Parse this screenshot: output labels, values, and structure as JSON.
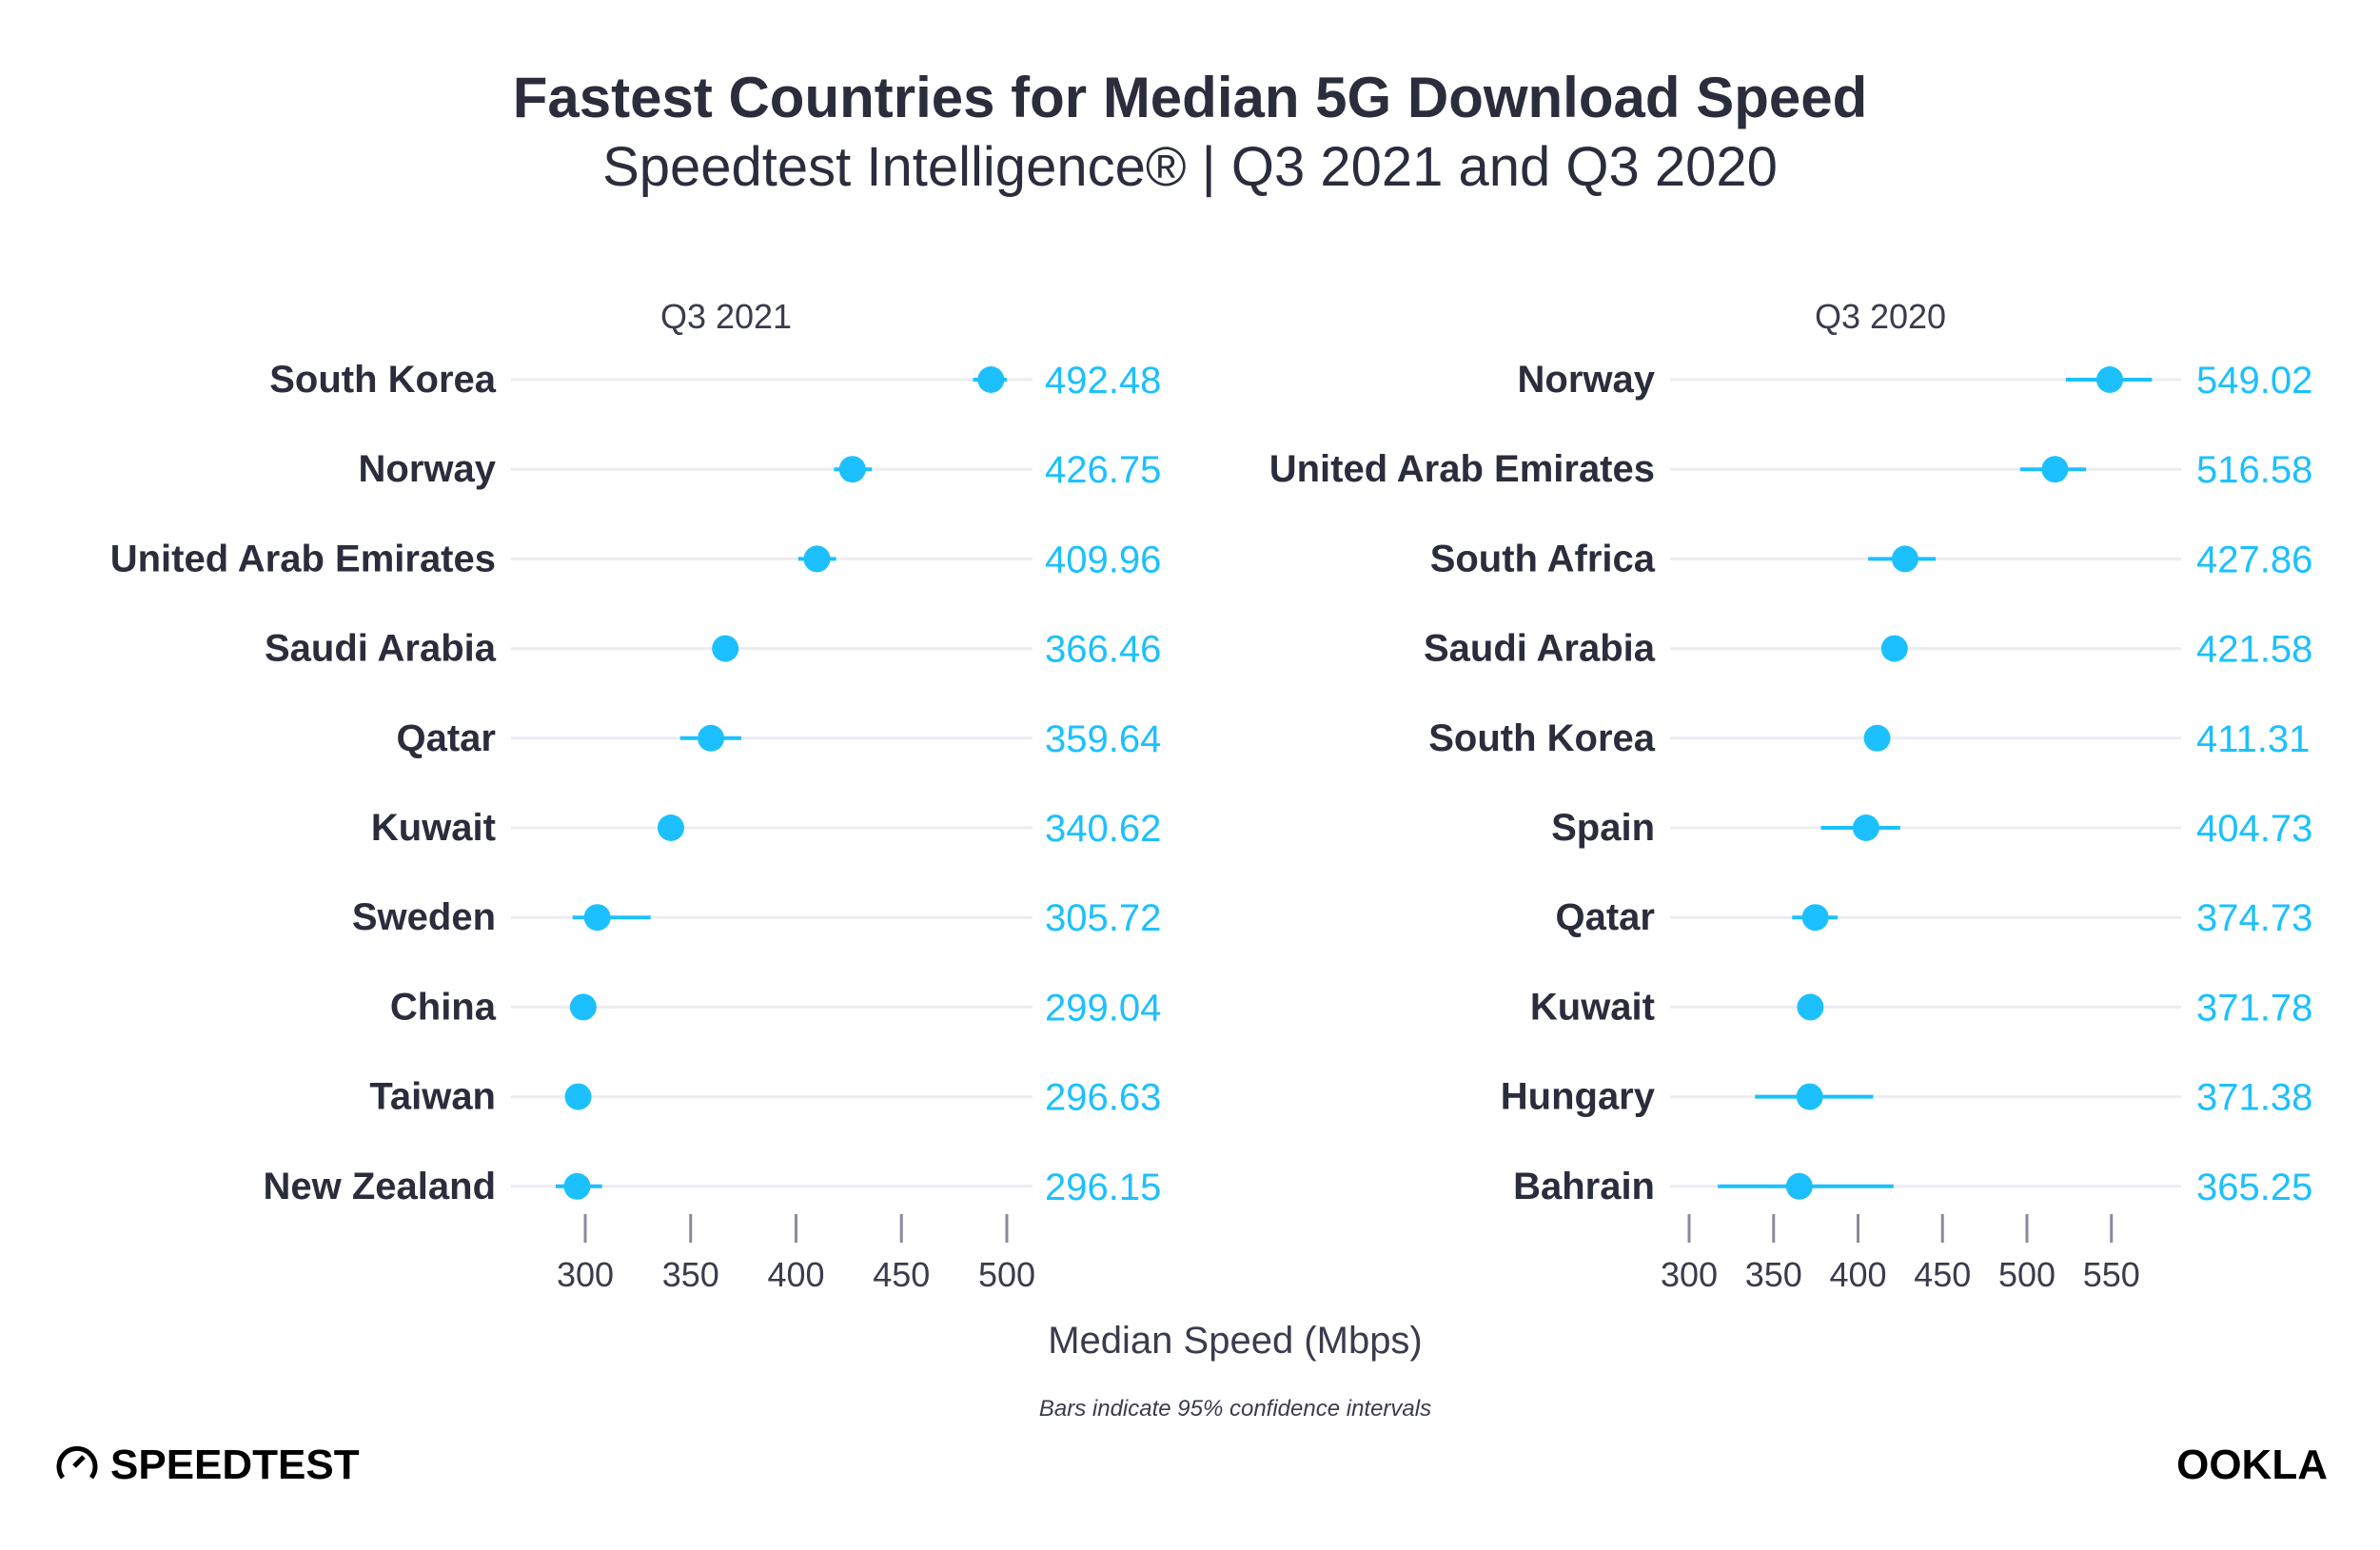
{
  "title": "Fastest Countries for Median 5G Download Speed",
  "subtitle": "Speedtest Intelligence® | Q3 2021 and Q3 2020",
  "chart_data": [
    {
      "type": "dot",
      "panel_title": "Q3 2021",
      "categories": [
        "South Korea",
        "Norway",
        "United Arab Emirates",
        "Saudi Arabia",
        "Qatar",
        "Kuwait",
        "Sweden",
        "China",
        "Taiwan",
        "New Zealand"
      ],
      "values": [
        492.48,
        426.75,
        409.96,
        366.46,
        359.64,
        340.62,
        305.72,
        299.04,
        296.63,
        296.15
      ],
      "value_labels": [
        "492.48",
        "426.75",
        "409.96",
        "366.46",
        "359.64",
        "340.62",
        "305.72",
        "299.04",
        "296.63",
        "296.15"
      ],
      "ci": [
        [
          484,
          500
        ],
        [
          418,
          436
        ],
        [
          401,
          419
        ],
        null,
        [
          345,
          374
        ],
        null,
        [
          294,
          331
        ],
        null,
        null,
        [
          286,
          308
        ]
      ],
      "xlim": [
        280,
        510
      ],
      "xticks": [
        "300",
        "350",
        "400",
        "450",
        "500"
      ]
    },
    {
      "type": "dot",
      "panel_title": "Q3 2020",
      "categories": [
        "Norway",
        "United Arab Emirates",
        "South Africa",
        "Saudi Arabia",
        "South Korea",
        "Spain",
        "Qatar",
        "Kuwait",
        "Hungary",
        "Bahrain"
      ],
      "values": [
        549.02,
        516.58,
        427.86,
        421.58,
        411.31,
        404.73,
        374.73,
        371.78,
        371.38,
        365.25
      ],
      "value_labels": [
        "549.02",
        "516.58",
        "427.86",
        "421.58",
        "411.31",
        "404.73",
        "374.73",
        "371.78",
        "371.38",
        "365.25"
      ],
      "ci": [
        [
          523,
          574
        ],
        [
          496,
          535
        ],
        [
          406,
          446
        ],
        null,
        null,
        [
          378,
          425
        ],
        [
          361,
          388
        ],
        null,
        [
          339,
          409
        ],
        [
          317,
          421
        ]
      ],
      "xlim": [
        280,
        585
      ],
      "xticks": [
        "300",
        "350",
        "400",
        "450",
        "500",
        "550"
      ]
    }
  ],
  "xlabel": "Median Speed (Mbps)",
  "footnote": "Bars indicate 95% confidence intervals",
  "logos": {
    "left": "SPEEDTEST",
    "right": "OOKLA"
  },
  "colors": {
    "dot": "#1cc0ff",
    "text": "#2b2d3c",
    "grid": "#ececf2",
    "tick": "#8a8a9a"
  }
}
